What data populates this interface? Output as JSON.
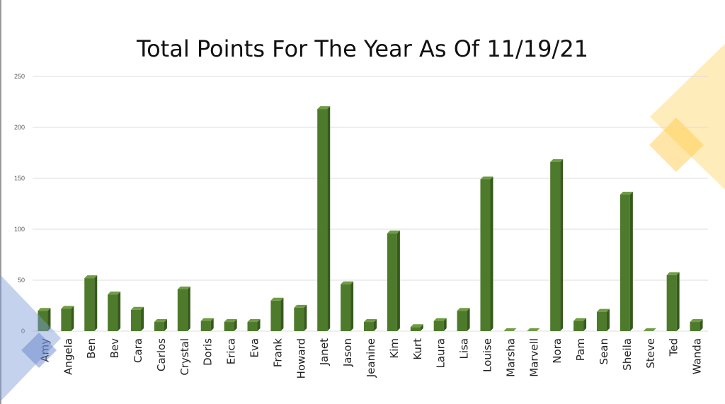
{
  "slide": {
    "accent_yellow": "#FFC83D",
    "accent_blue": "#7F9BD6"
  },
  "chart_data": {
    "type": "bar",
    "title": "Total Points For The Year As Of 11/19/21",
    "xlabel": "",
    "ylabel": "",
    "ylim": [
      0,
      250
    ],
    "yticks": [
      0,
      50,
      100,
      150,
      200,
      250
    ],
    "grid": true,
    "legend": "none",
    "bar_color": "#4E7A2C",
    "categories": [
      "Amy",
      "Angela",
      "Ben",
      "Bev",
      "Cara",
      "Carlos",
      "Crystal",
      "Doris",
      "Erica",
      "Eva",
      "Frank",
      "Howard",
      "Janet",
      "Jason",
      "Jeanine",
      "Kim",
      "Kurt",
      "Laura",
      "Lisa",
      "Louise",
      "Marsha",
      "Marvell",
      "Nora",
      "Pam",
      "Sean",
      "Sheila",
      "Steve",
      "Ted",
      "Wanda"
    ],
    "values": [
      20,
      22,
      52,
      36,
      21,
      9,
      41,
      10,
      9,
      9,
      30,
      23,
      218,
      46,
      9,
      96,
      4,
      10,
      20,
      149,
      0,
      0,
      166,
      10,
      19,
      134,
      0,
      55,
      9
    ]
  }
}
